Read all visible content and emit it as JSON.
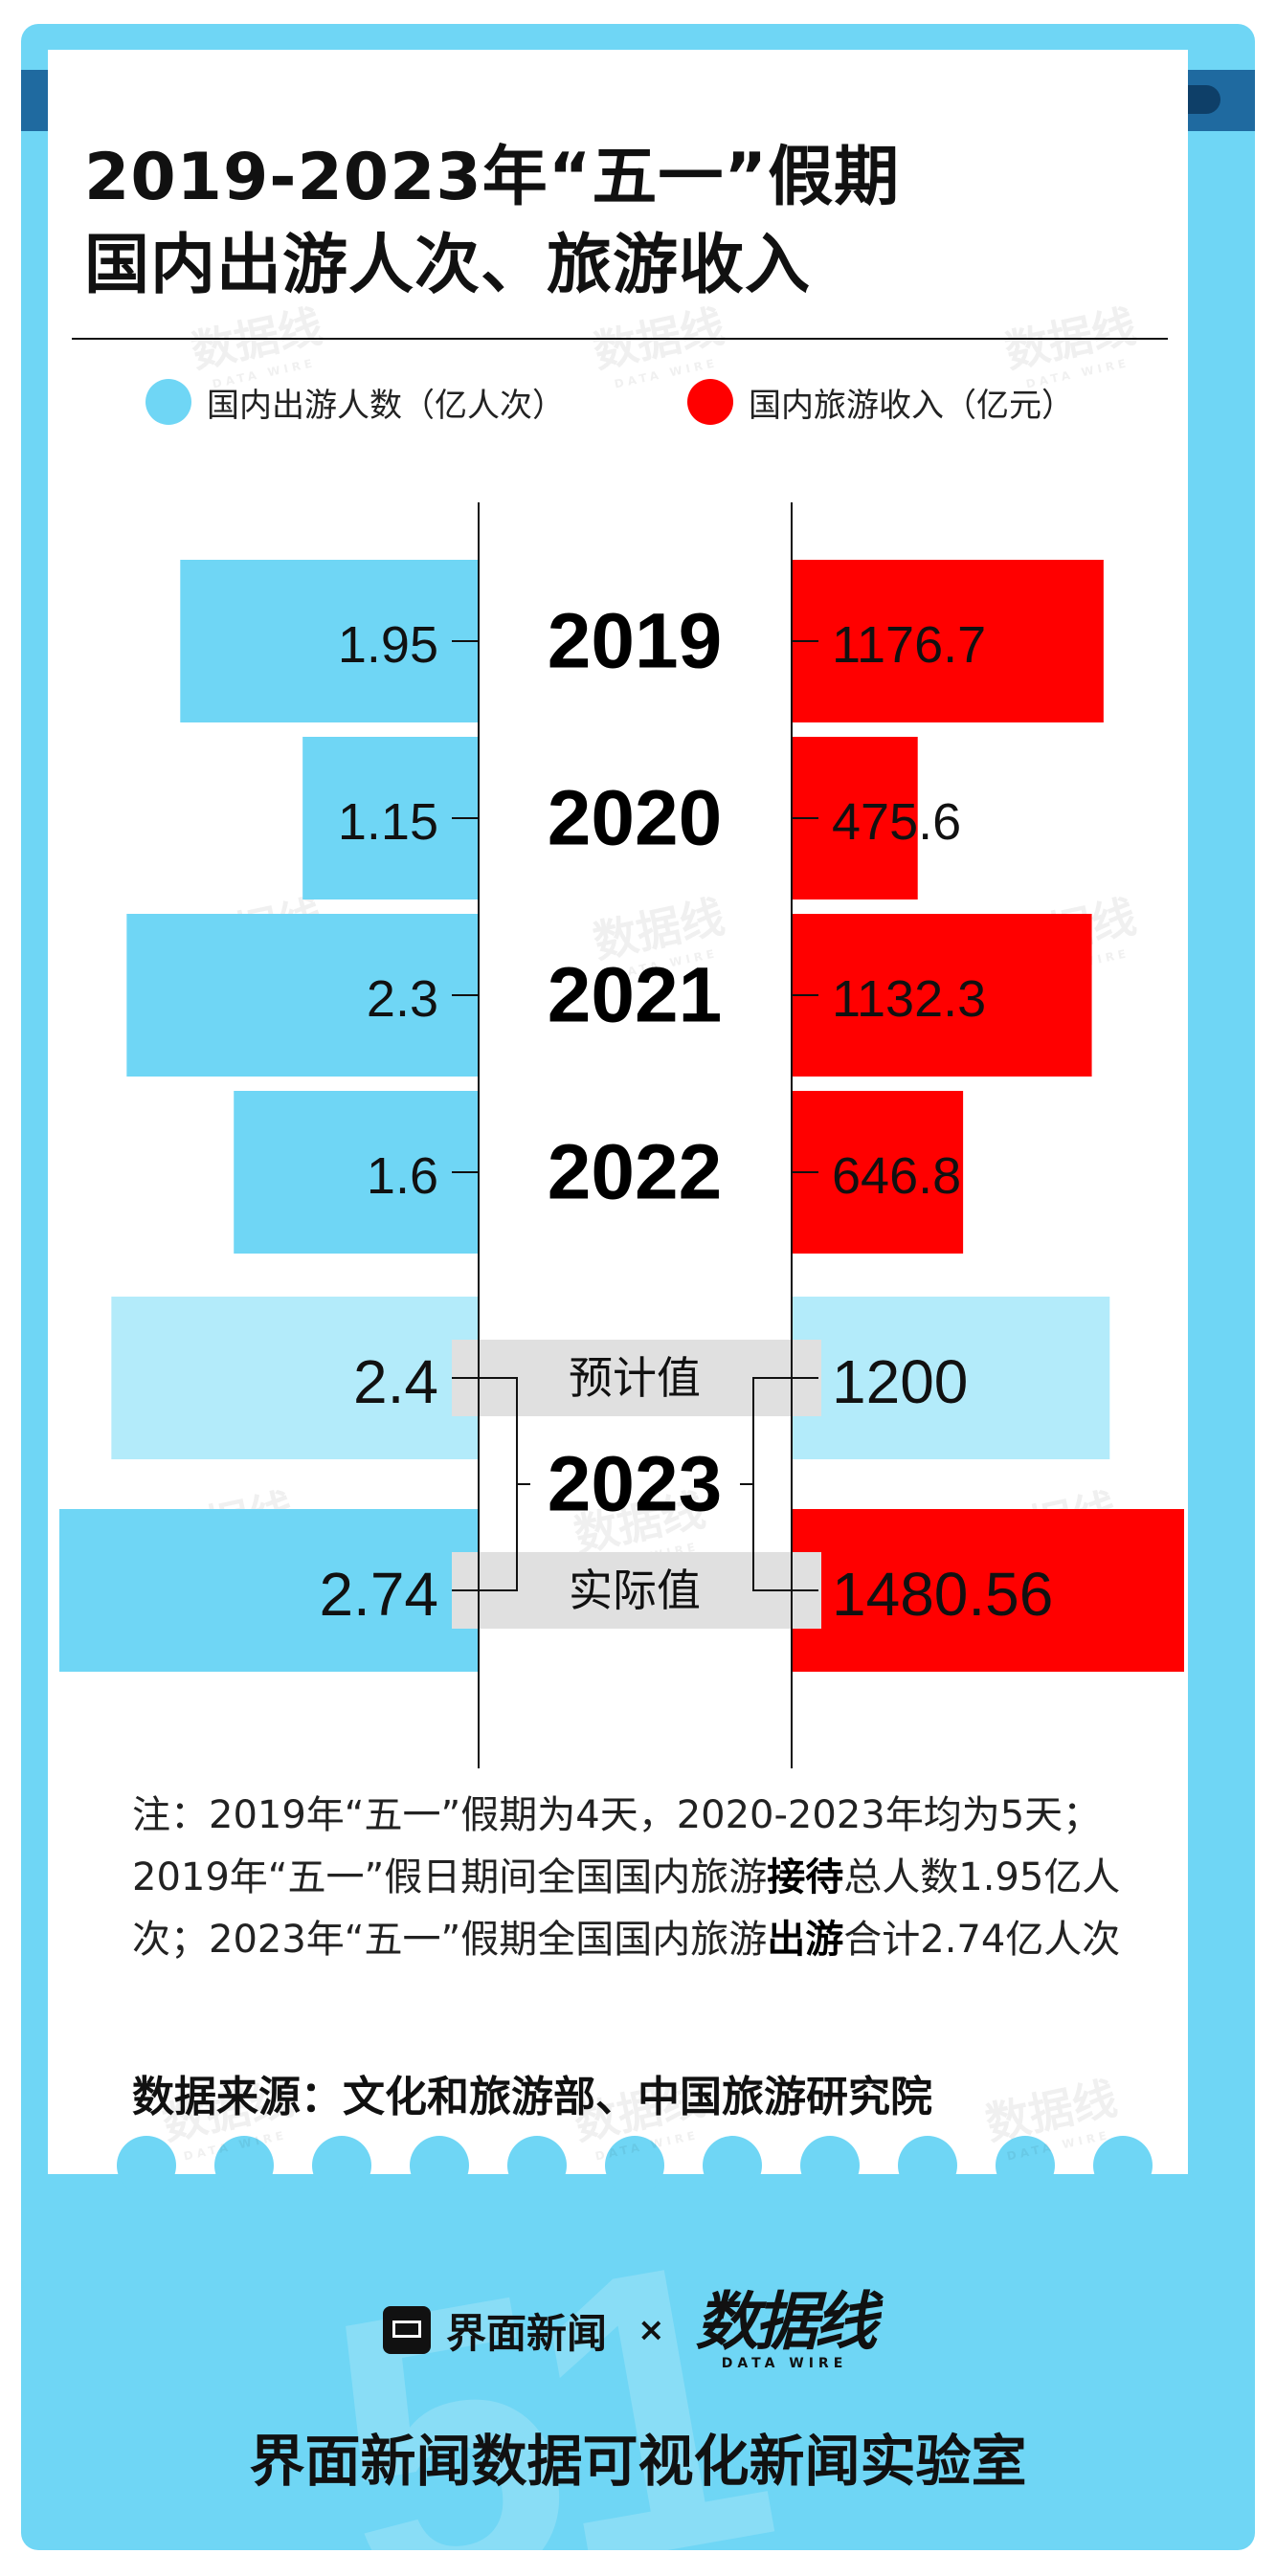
{
  "header": {
    "title_line1": "2019-2023年“五一”假期",
    "title_line2": "国内出游人次、旅游收入"
  },
  "legend": {
    "left": "国内出游人数（亿人次）",
    "right": "国内旅游收入（亿元）",
    "left_color": "#6fd6f5",
    "right_color": "#ff0000"
  },
  "chart_data": {
    "type": "bar",
    "layout": "butterfly",
    "categories": [
      "2019",
      "2020",
      "2021",
      "2022",
      "2023"
    ],
    "series": [
      {
        "name": "国内出游人数（亿人次）",
        "values": [
          1.95,
          1.15,
          2.3,
          1.6,
          2.74
        ],
        "color": "#6fd6f5"
      },
      {
        "name": "国内旅游收入（亿元）",
        "values": [
          1176.7,
          475.6,
          1132.3,
          646.8,
          1480.56
        ],
        "color": "#ff0000"
      }
    ],
    "series_labels": {
      "trips": [
        "1.95",
        "1.15",
        "2.3",
        "1.6",
        "2.74"
      ],
      "revenue": [
        "1176.7",
        "475.6",
        "1132.3",
        "646.8",
        "1480.56"
      ]
    },
    "forecast_2023": {
      "label": "预计值",
      "trips": 2.4,
      "revenue": 1200,
      "trips_label": "2.4",
      "revenue_label": "1200",
      "light_color": "#b3ebfa"
    },
    "actual_2023_label": "实际值",
    "year_2023_label": "2023"
  },
  "note": {
    "part1": "注：2019年“五一”假期为4天，2020-2023年均为5天；2019年“五一”假日期间全国国内旅游",
    "bold1": "接待",
    "part2": "总人数1.95亿人次；2023年“五一”假期全国国内旅游",
    "bold2": "出游",
    "part3": "合计2.74亿人次"
  },
  "source": "数据来源：文化和旅游部、中国旅游研究院",
  "watermark": {
    "text": "数据线",
    "sub": "DATA WIRE"
  },
  "footer": {
    "big_number": "51",
    "brand": "界面新闻",
    "times": "×",
    "partner": "数据线",
    "partner_sub": "DATA WIRE",
    "lab_title": "界面新闻数据可视化新闻实验室"
  }
}
